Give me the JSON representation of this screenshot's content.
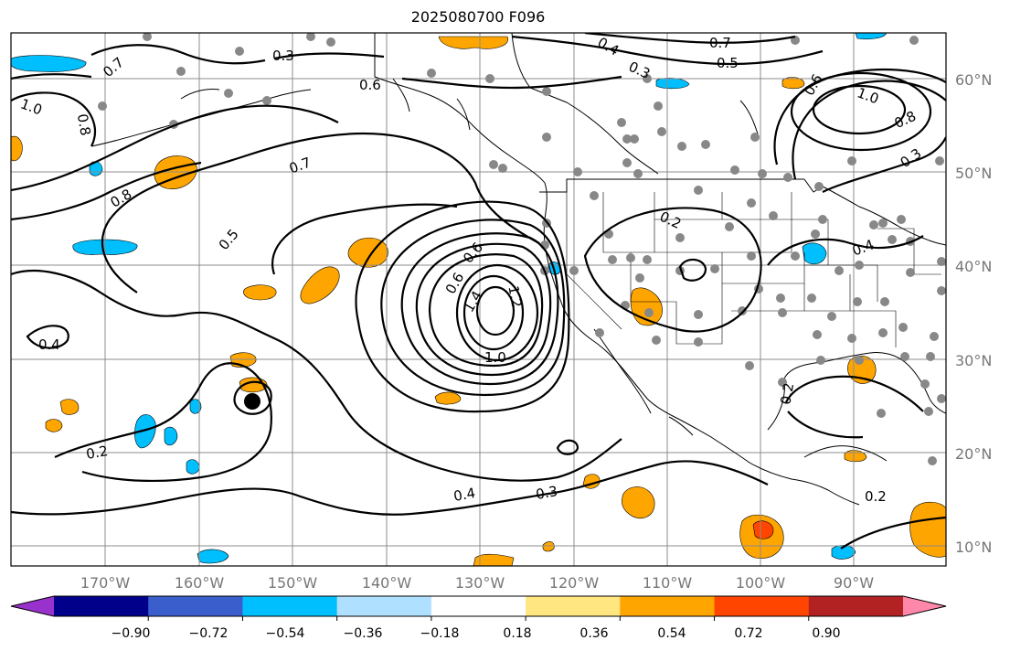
{
  "title": "2025080700 F096",
  "lat_labels": [
    "60°N",
    "50°N",
    "40°N",
    "30°N",
    "20°N",
    "10°N"
  ],
  "lon_labels": [
    "170°W",
    "160°W",
    "150°W",
    "140°W",
    "130°W",
    "120°W",
    "110°W",
    "100°W",
    "90°W"
  ],
  "colorbar": {
    "tick_labels": [
      "−0.90",
      "−0.72",
      "−0.54",
      "−0.36",
      "−0.18",
      "0.18",
      "0.36",
      "0.54",
      "0.72",
      "0.90"
    ],
    "colors": [
      "#9932cc",
      "#00008b",
      "#3a5fcd",
      "#00bfff",
      "#b0e0ff",
      "#ffffff",
      "#ffe680",
      "#ffa500",
      "#ff4500",
      "#b22222",
      "#ff88aa"
    ]
  },
  "contour_labels": [
    {
      "text": "0.7",
      "name": "contour-label-0-7-nw"
    },
    {
      "text": "0.3",
      "name": "contour-label-0-3-alaska"
    },
    {
      "text": "0.6",
      "name": "contour-label-0-6-gulf"
    },
    {
      "text": "1.0",
      "name": "contour-label-1-0-west"
    },
    {
      "text": "0.8",
      "name": "contour-label-0-8-west"
    },
    {
      "text": "0.8",
      "name": "contour-label-0-8-pacific"
    },
    {
      "text": "0.7",
      "name": "contour-label-0-7-pacific"
    },
    {
      "text": "0.5",
      "name": "contour-label-0-5-pacific"
    },
    {
      "text": "0.4",
      "name": "contour-label-0-4-west"
    },
    {
      "text": "0.2",
      "name": "contour-label-0-2-hawaii"
    },
    {
      "text": "0.6",
      "name": "contour-label-0-6-low-a"
    },
    {
      "text": "0.6",
      "name": "contour-label-0-6-low-b"
    },
    {
      "text": "1.4",
      "name": "contour-label-1-4-low"
    },
    {
      "text": "1.2",
      "name": "contour-label-1-2-low"
    },
    {
      "text": "1.0",
      "name": "contour-label-1-0-low"
    },
    {
      "text": "0.4",
      "name": "contour-label-0-4-south"
    },
    {
      "text": "0.3",
      "name": "contour-label-0-3-south"
    },
    {
      "text": "0.4",
      "name": "contour-label-0-4-north"
    },
    {
      "text": "0.3",
      "name": "contour-label-0-3-north"
    },
    {
      "text": "0.7",
      "name": "contour-label-0-7-north"
    },
    {
      "text": "0.5",
      "name": "contour-label-0-5-north"
    },
    {
      "text": "0.2",
      "name": "contour-label-0-2-sw-us"
    },
    {
      "text": "1.0",
      "name": "contour-label-1-0-canada"
    },
    {
      "text": "0.8",
      "name": "contour-label-0-8-canada"
    },
    {
      "text": "0.3",
      "name": "contour-label-0-3-canada"
    },
    {
      "text": "0.6",
      "name": "contour-label-0-6-canada"
    },
    {
      "text": "0.2",
      "name": "contour-label-0-2-gulf-mex"
    },
    {
      "text": "0.2",
      "name": "contour-label-0-2-caribbean"
    },
    {
      "text": "0.4",
      "name": "contour-label-0-4-east"
    }
  ]
}
